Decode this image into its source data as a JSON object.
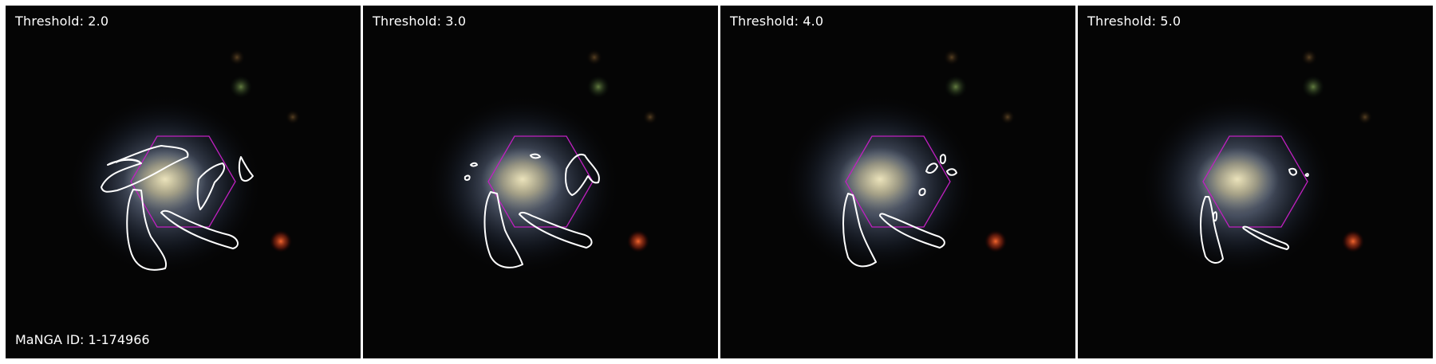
{
  "figure": {
    "threshold_prefix": "Threshold:",
    "manga_id_text": "MaNGA ID: 1-174966"
  },
  "panels": [
    {
      "threshold": "2.0"
    },
    {
      "threshold": "3.0"
    },
    {
      "threshold": "4.0"
    },
    {
      "threshold": "5.0"
    }
  ],
  "colors": {
    "background": "#050505",
    "hexagon": "#c020c0",
    "contour": "#ffffff",
    "galaxy_core": "#d8d2a8",
    "galaxy_halo": "#7890b8",
    "red_source": "#e04020",
    "green_source": "#4a6a30"
  }
}
